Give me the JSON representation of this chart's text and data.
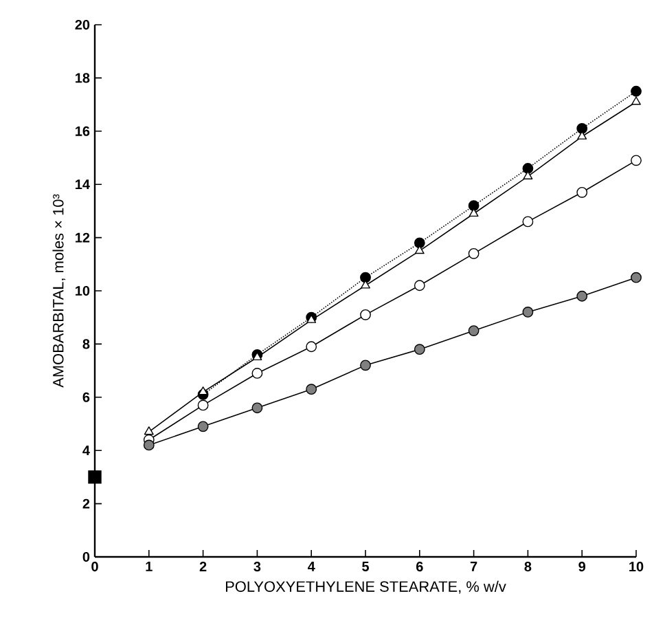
{
  "chart_data": {
    "type": "line",
    "xlabel": "POLYOXYETHYLENE STEARATE, % w/v",
    "ylabel": "AMOBARBITAL, moles × 10³",
    "xlim": [
      0,
      10
    ],
    "ylim": [
      0,
      20
    ],
    "xticks": [
      0,
      1,
      2,
      3,
      4,
      5,
      6,
      7,
      8,
      9,
      10
    ],
    "yticks": [
      0,
      2,
      4,
      6,
      8,
      10,
      12,
      14,
      16,
      18,
      20
    ],
    "series": [
      {
        "x": [
          2,
          3,
          4,
          5,
          6,
          7,
          8,
          9,
          10
        ],
        "values": [
          6.1,
          7.6,
          9.0,
          10.5,
          11.8,
          13.2,
          14.6,
          16.1,
          17.5
        ],
        "color": "#000000",
        "marker": "circle",
        "line_style": "dotted"
      },
      {
        "x": [
          1,
          2,
          3,
          4,
          5,
          6,
          7,
          8,
          9,
          10
        ],
        "values": [
          4.7,
          6.2,
          7.5,
          8.9,
          10.2,
          11.5,
          12.9,
          14.3,
          15.8,
          17.1
        ],
        "color": "#ffffff",
        "marker": "triangle",
        "line_style": "solid"
      },
      {
        "x": [
          1,
          2,
          3,
          4,
          5,
          6,
          7,
          8,
          9,
          10
        ],
        "values": [
          4.4,
          5.7,
          6.9,
          7.9,
          9.1,
          10.2,
          11.4,
          12.6,
          13.7,
          14.9
        ],
        "color": "#ffffff",
        "marker": "circle",
        "line_style": "solid"
      },
      {
        "x": [
          1,
          2,
          3,
          4,
          5,
          6,
          7,
          8,
          9,
          10
        ],
        "values": [
          4.2,
          4.9,
          5.6,
          6.3,
          7.2,
          7.8,
          8.5,
          9.2,
          9.8,
          10.5
        ],
        "color": "#808080",
        "marker": "circle",
        "line_style": "solid"
      },
      {
        "type": "scatter",
        "x": [
          0
        ],
        "values": [
          3.0
        ],
        "color": "#000000",
        "marker": "square"
      }
    ]
  }
}
